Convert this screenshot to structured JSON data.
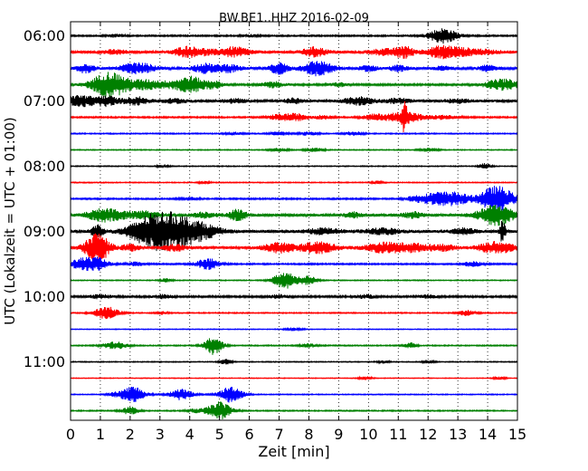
{
  "chart_data": {
    "type": "line",
    "title": "BW.BE1..HHZ 2016-02-09",
    "xlabel": "Zeit  [min]",
    "ylabel": "UTC (Lokalzeit = UTC + 01:00)",
    "xlim": [
      0,
      15
    ],
    "x_ticks": [
      "0",
      "1",
      "2",
      "3",
      "4",
      "5",
      "6",
      "7",
      "8",
      "9",
      "10",
      "11",
      "12",
      "13",
      "14",
      "15"
    ],
    "y_ticks": [
      {
        "label": "06:00",
        "trace": 0
      },
      {
        "label": "07:00",
        "trace": 4
      },
      {
        "label": "08:00",
        "trace": 8
      },
      {
        "label": "09:00",
        "trace": 12
      },
      {
        "label": "10:00",
        "trace": 16
      },
      {
        "label": "11:00",
        "trace": 20
      }
    ],
    "grid": "vertical dotted at each minute",
    "colors": [
      "#000000",
      "#ff0000",
      "#0000ff",
      "#008000"
    ],
    "traces": [
      {
        "time": "06:00",
        "color": "#000000",
        "noise": 0.8,
        "events": [
          [
            12.5,
            8,
            0.5
          ],
          [
            1.5,
            1.5,
            0.3
          ],
          [
            6,
            1.2,
            0.3
          ]
        ]
      },
      {
        "time": "06:15",
        "color": "#ff0000",
        "noise": 1.5,
        "events": [
          [
            4.2,
            4,
            0.6
          ],
          [
            5.5,
            5,
            0.5
          ],
          [
            8.2,
            5,
            0.4
          ],
          [
            10.5,
            3,
            0.5
          ],
          [
            11.2,
            6,
            0.3
          ],
          [
            12.5,
            6,
            0.6
          ],
          [
            13.5,
            3,
            0.8
          ],
          [
            1.5,
            2,
            0.4
          ],
          [
            3.8,
            3,
            0.3
          ]
        ]
      },
      {
        "time": "06:30",
        "color": "#0000ff",
        "noise": 1.3,
        "events": [
          [
            0.5,
            5,
            0.3
          ],
          [
            2,
            4,
            0.4
          ],
          [
            2.5,
            4,
            0.4
          ],
          [
            4.5,
            5,
            0.4
          ],
          [
            5.3,
            4,
            0.4
          ],
          [
            7,
            6,
            0.3
          ],
          [
            8.3,
            8,
            0.5
          ],
          [
            10,
            3,
            0.3
          ],
          [
            11,
            3,
            0.3
          ],
          [
            14,
            3,
            0.3
          ],
          [
            12.5,
            2,
            0.3
          ]
        ]
      },
      {
        "time": "06:45",
        "color": "#008000",
        "noise": 1.0,
        "events": [
          [
            1.3,
            14,
            0.6
          ],
          [
            2.5,
            5,
            0.6
          ],
          [
            3.6,
            4,
            0.6
          ],
          [
            4.1,
            7,
            0.4
          ],
          [
            4.8,
            4,
            0.3
          ],
          [
            6.8,
            3,
            0.4
          ],
          [
            14.5,
            6,
            0.6
          ],
          [
            9,
            2,
            0.3
          ]
        ]
      },
      {
        "time": "07:00",
        "color": "#000000",
        "noise": 1.5,
        "events": [
          [
            0.3,
            6,
            0.5
          ],
          [
            1.2,
            5,
            0.4
          ],
          [
            2.2,
            4,
            0.4
          ],
          [
            9.7,
            4,
            0.5
          ],
          [
            7.5,
            2.5,
            0.3
          ],
          [
            11,
            2.5,
            0.4
          ],
          [
            3.5,
            2,
            0.4
          ],
          [
            5.5,
            2,
            0.4
          ],
          [
            13,
            2,
            0.4
          ]
        ]
      },
      {
        "time": "07:15",
        "color": "#ff0000",
        "noise": 0.8,
        "events": [
          [
            7.5,
            4,
            0.5
          ],
          [
            11.2,
            6,
            0.6
          ],
          [
            11.2,
            14,
            0.1
          ],
          [
            10.2,
            3,
            0.4
          ],
          [
            12.5,
            2,
            0.5
          ],
          [
            6.9,
            2,
            0.3
          ],
          [
            8.5,
            2,
            0.3
          ]
        ]
      },
      {
        "time": "07:30",
        "color": "#0000ff",
        "noise": 0.6,
        "events": [
          [
            7,
            2,
            0.3
          ],
          [
            8,
            2,
            0.3
          ],
          [
            9.5,
            2.5,
            0.3
          ],
          [
            5.5,
            1.5,
            0.3
          ]
        ]
      },
      {
        "time": "07:45",
        "color": "#008000",
        "noise": 0.5,
        "events": [
          [
            7,
            2,
            0.3
          ],
          [
            8.2,
            2,
            0.3
          ],
          [
            12,
            1.8,
            0.3
          ]
        ]
      },
      {
        "time": "08:00",
        "color": "#000000",
        "noise": 0.5,
        "events": [
          [
            13.9,
            3,
            0.2
          ],
          [
            3.1,
            1.5,
            0.2
          ]
        ]
      },
      {
        "time": "08:15",
        "color": "#ff0000",
        "noise": 0.5,
        "events": [
          [
            4.5,
            1.5,
            0.2
          ],
          [
            10.3,
            1.5,
            0.2
          ]
        ]
      },
      {
        "time": "08:30",
        "color": "#0000ff",
        "noise": 0.8,
        "events": [
          [
            12.3,
            7,
            0.6
          ],
          [
            13,
            5,
            0.4
          ],
          [
            14.3,
            14,
            0.6
          ],
          [
            11.5,
            2,
            0.3
          ],
          [
            4,
            1.5,
            0.3
          ]
        ]
      },
      {
        "time": "08:45",
        "color": "#008000",
        "noise": 1.5,
        "events": [
          [
            14.3,
            11,
            0.6
          ],
          [
            1,
            5,
            0.5
          ],
          [
            1.5,
            4,
            0.5
          ],
          [
            2.5,
            4,
            0.5
          ],
          [
            4.5,
            3,
            0.4
          ],
          [
            5.6,
            6,
            0.3
          ],
          [
            9.5,
            3,
            0.3
          ],
          [
            11.5,
            3,
            0.4
          ]
        ]
      },
      {
        "time": "09:00",
        "color": "#000000",
        "noise": 1.6,
        "events": [
          [
            3.3,
            20,
            1.0
          ],
          [
            0.9,
            7,
            0.2
          ],
          [
            2.5,
            5,
            0.6
          ],
          [
            4.5,
            4,
            0.6
          ],
          [
            8.5,
            3,
            0.6
          ],
          [
            10.5,
            3,
            0.6
          ],
          [
            13.2,
            3,
            0.4
          ],
          [
            14.5,
            12,
            0.1
          ]
        ]
      },
      {
        "time": "09:15",
        "color": "#ff0000",
        "noise": 1.6,
        "events": [
          [
            0.9,
            16,
            0.4
          ],
          [
            7,
            5,
            0.5
          ],
          [
            8.3,
            6,
            0.6
          ],
          [
            10.5,
            5,
            0.6
          ],
          [
            11.5,
            4,
            0.6
          ],
          [
            12.5,
            3,
            0.4
          ],
          [
            14.3,
            6,
            0.6
          ],
          [
            2,
            3,
            0.3
          ],
          [
            3.5,
            3,
            0.4
          ]
        ]
      },
      {
        "time": "09:30",
        "color": "#0000ff",
        "noise": 0.8,
        "events": [
          [
            0.5,
            7,
            0.5
          ],
          [
            1,
            4,
            0.3
          ],
          [
            4.6,
            6,
            0.4
          ],
          [
            13.5,
            3,
            0.3
          ],
          [
            2.2,
            2,
            0.3
          ]
        ]
      },
      {
        "time": "09:45",
        "color": "#008000",
        "noise": 0.5,
        "events": [
          [
            7.2,
            9,
            0.4
          ],
          [
            8,
            5,
            0.3
          ],
          [
            3.2,
            2,
            0.2
          ]
        ]
      },
      {
        "time": "10:00",
        "color": "#000000",
        "noise": 1.0,
        "events": [
          [
            1,
            2,
            0.4
          ],
          [
            3.1,
            2,
            0.3
          ],
          [
            7,
            2,
            0.3
          ],
          [
            9.9,
            2,
            0.3
          ],
          [
            12,
            1.5,
            0.3
          ]
        ]
      },
      {
        "time": "10:15",
        "color": "#ff0000",
        "noise": 0.6,
        "events": [
          [
            1.2,
            7,
            0.4
          ],
          [
            13.3,
            3,
            0.3
          ],
          [
            3.1,
            2,
            0.2
          ]
        ]
      },
      {
        "time": "10:30",
        "color": "#0000ff",
        "noise": 0.4,
        "events": [
          [
            7.5,
            1.5,
            0.3
          ]
        ]
      },
      {
        "time": "10:45",
        "color": "#008000",
        "noise": 0.6,
        "events": [
          [
            1.5,
            4,
            0.4
          ],
          [
            4.8,
            10,
            0.3
          ],
          [
            11.4,
            3,
            0.2
          ],
          [
            8,
            2,
            0.3
          ]
        ]
      },
      {
        "time": "11:00",
        "color": "#000000",
        "noise": 0.5,
        "events": [
          [
            5.2,
            3,
            0.2
          ],
          [
            10.5,
            1.5,
            0.2
          ],
          [
            12,
            1.5,
            0.2
          ]
        ]
      },
      {
        "time": "11:15",
        "color": "#ff0000",
        "noise": 0.4,
        "events": [
          [
            9.9,
            2,
            0.2
          ],
          [
            14.4,
            1.5,
            0.2
          ]
        ]
      },
      {
        "time": "11:30",
        "color": "#0000ff",
        "noise": 0.5,
        "events": [
          [
            2.1,
            9,
            0.4
          ],
          [
            3.7,
            6,
            0.4
          ],
          [
            5.4,
            9,
            0.4
          ],
          [
            1.5,
            2,
            0.3
          ]
        ]
      },
      {
        "time": "11:45",
        "color": "#008000",
        "noise": 0.6,
        "events": [
          [
            5,
            10,
            0.4
          ],
          [
            2,
            4,
            0.3
          ],
          [
            4.2,
            2,
            0.3
          ]
        ]
      }
    ]
  }
}
